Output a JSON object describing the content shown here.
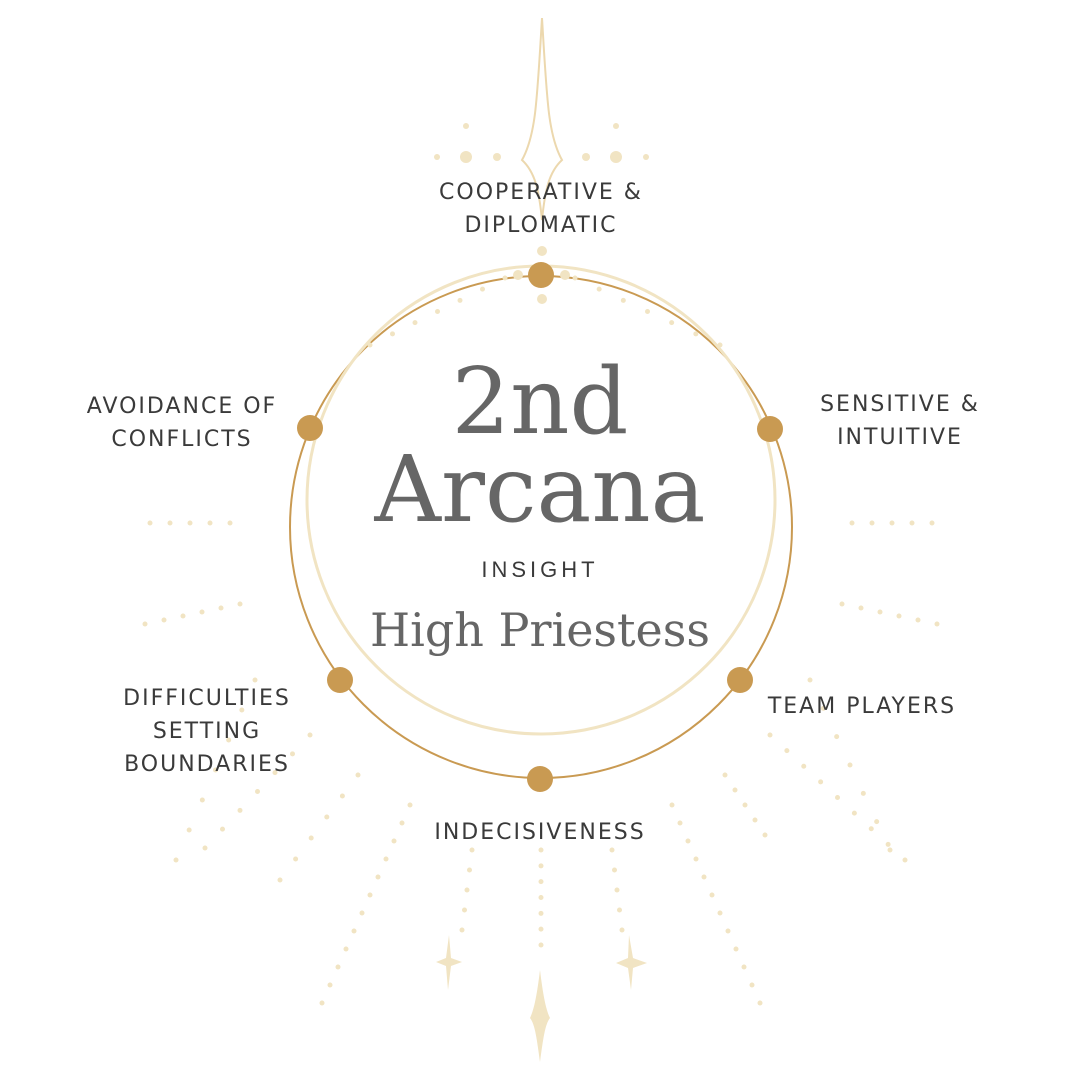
{
  "title_number": "2nd",
  "title_word": "Arcana",
  "brand": "INSIGHT",
  "card_name": "High Priestess",
  "traits": {
    "top": [
      "COOPERATIVE &",
      "DIPLOMATIC"
    ],
    "upper_left": [
      "AVOIDANCE OF",
      "CONFLICTS"
    ],
    "upper_right": [
      "SENSITIVE &",
      "INTUITIVE"
    ],
    "lower_left": [
      "DIFFICULTIES",
      "SETTING",
      "BOUNDARIES"
    ],
    "lower_right": [
      "TEAM PLAYERS"
    ],
    "bottom": [
      "INDECISIVENESS"
    ]
  },
  "colors": {
    "gold": "#c99a52",
    "pale_gold": "#f1e4c3",
    "text": "#3a3a3a",
    "title": "#666666"
  },
  "icons": [
    "sparkle-star-icon",
    "diamond-star-icon",
    "ring-icon"
  ]
}
